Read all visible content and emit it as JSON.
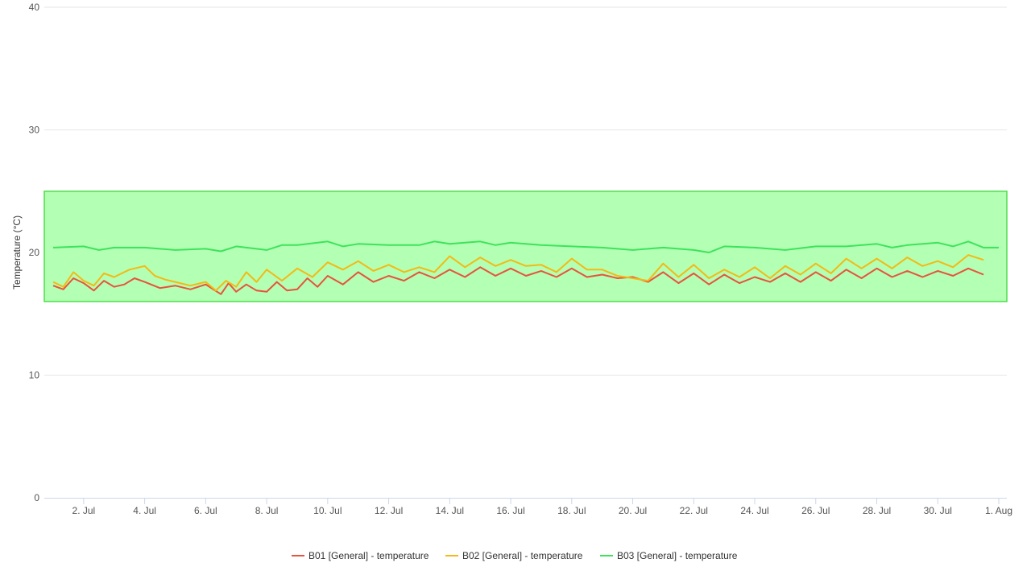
{
  "chart_data": {
    "type": "line",
    "title": "",
    "ylabel": "Temperature (°C)",
    "xlabel": "",
    "ylim": [
      0,
      40
    ],
    "y_ticks": [
      0,
      10,
      20,
      30,
      40
    ],
    "x_range": [
      "2023-07-01",
      "2023-08-01"
    ],
    "x_ticks": [
      {
        "date": "2023-07-02",
        "label": "2. Jul"
      },
      {
        "date": "2023-07-04",
        "label": "4. Jul"
      },
      {
        "date": "2023-07-06",
        "label": "6. Jul"
      },
      {
        "date": "2023-07-08",
        "label": "8. Jul"
      },
      {
        "date": "2023-07-10",
        "label": "10. Jul"
      },
      {
        "date": "2023-07-12",
        "label": "12. Jul"
      },
      {
        "date": "2023-07-14",
        "label": "14. Jul"
      },
      {
        "date": "2023-07-16",
        "label": "16. Jul"
      },
      {
        "date": "2023-07-18",
        "label": "18. Jul"
      },
      {
        "date": "2023-07-20",
        "label": "20. Jul"
      },
      {
        "date": "2023-07-22",
        "label": "22. Jul"
      },
      {
        "date": "2023-07-24",
        "label": "24. Jul"
      },
      {
        "date": "2023-07-26",
        "label": "26. Jul"
      },
      {
        "date": "2023-07-28",
        "label": "28. Jul"
      },
      {
        "date": "2023-07-30",
        "label": "30. Jul"
      },
      {
        "date": "2023-08-01",
        "label": "1. Aug"
      }
    ],
    "band": {
      "from": 16,
      "to": 25,
      "fill": "#b3ffb3",
      "stroke": "#4ddd4d"
    },
    "grid": true,
    "legend_position": "bottom-center",
    "series": [
      {
        "name": "B01 [General] - temperature",
        "color": "#e8533c",
        "points": [
          [
            "2023-07-01",
            17.3
          ],
          [
            "2023-07-01",
            17.0
          ],
          [
            "2023-07-01",
            17.9
          ],
          [
            "2023-07-02",
            17.5
          ],
          [
            "2023-07-02",
            16.9
          ],
          [
            "2023-07-02",
            17.7
          ],
          [
            "2023-07-03",
            17.2
          ],
          [
            "2023-07-03",
            17.4
          ],
          [
            "2023-07-03",
            17.9
          ],
          [
            "2023-07-04",
            17.6
          ],
          [
            "2023-07-04",
            17.1
          ],
          [
            "2023-07-05",
            17.3
          ],
          [
            "2023-07-05",
            17.0
          ],
          [
            "2023-07-06",
            17.4
          ],
          [
            "2023-07-06",
            17.0
          ],
          [
            "2023-07-06",
            16.6
          ],
          [
            "2023-07-06",
            17.5
          ],
          [
            "2023-07-07",
            16.8
          ],
          [
            "2023-07-07",
            17.4
          ],
          [
            "2023-07-07",
            16.9
          ],
          [
            "2023-07-08",
            16.8
          ],
          [
            "2023-07-08",
            17.6
          ],
          [
            "2023-07-08",
            16.9
          ],
          [
            "2023-07-09",
            17.0
          ],
          [
            "2023-07-09",
            17.9
          ],
          [
            "2023-07-09",
            17.2
          ],
          [
            "2023-07-10",
            18.1
          ],
          [
            "2023-07-10",
            17.4
          ],
          [
            "2023-07-11",
            18.4
          ],
          [
            "2023-07-11",
            17.6
          ],
          [
            "2023-07-12",
            18.1
          ],
          [
            "2023-07-12",
            17.7
          ],
          [
            "2023-07-13",
            18.4
          ],
          [
            "2023-07-13",
            17.9
          ],
          [
            "2023-07-14",
            18.6
          ],
          [
            "2023-07-14",
            18.0
          ],
          [
            "2023-07-15",
            18.8
          ],
          [
            "2023-07-15",
            18.1
          ],
          [
            "2023-07-16",
            18.7
          ],
          [
            "2023-07-16",
            18.1
          ],
          [
            "2023-07-17",
            18.5
          ],
          [
            "2023-07-17",
            18.0
          ],
          [
            "2023-07-18",
            18.7
          ],
          [
            "2023-07-18",
            18.0
          ],
          [
            "2023-07-19",
            18.2
          ],
          [
            "2023-07-19",
            17.9
          ],
          [
            "2023-07-20",
            18.0
          ],
          [
            "2023-07-20",
            17.6
          ],
          [
            "2023-07-21",
            18.4
          ],
          [
            "2023-07-21",
            17.5
          ],
          [
            "2023-07-22",
            18.3
          ],
          [
            "2023-07-22",
            17.4
          ],
          [
            "2023-07-23",
            18.2
          ],
          [
            "2023-07-23",
            17.5
          ],
          [
            "2023-07-24",
            18.0
          ],
          [
            "2023-07-24",
            17.6
          ],
          [
            "2023-07-25",
            18.3
          ],
          [
            "2023-07-25",
            17.6
          ],
          [
            "2023-07-26",
            18.4
          ],
          [
            "2023-07-26",
            17.7
          ],
          [
            "2023-07-27",
            18.6
          ],
          [
            "2023-07-27",
            17.9
          ],
          [
            "2023-07-28",
            18.7
          ],
          [
            "2023-07-28",
            18.0
          ],
          [
            "2023-07-29",
            18.5
          ],
          [
            "2023-07-29",
            18.0
          ],
          [
            "2023-07-30",
            18.5
          ],
          [
            "2023-07-30",
            18.1
          ],
          [
            "2023-07-31",
            18.7
          ],
          [
            "2023-07-31",
            18.2
          ]
        ]
      },
      {
        "name": "B02 [General] - temperature",
        "color": "#f5b914",
        "points": [
          [
            "2023-07-01",
            17.6
          ],
          [
            "2023-07-01",
            17.2
          ],
          [
            "2023-07-01",
            18.4
          ],
          [
            "2023-07-02",
            17.7
          ],
          [
            "2023-07-02",
            17.3
          ],
          [
            "2023-07-02",
            18.3
          ],
          [
            "2023-07-03",
            18.0
          ],
          [
            "2023-07-03",
            18.6
          ],
          [
            "2023-07-04",
            18.9
          ],
          [
            "2023-07-04",
            18.1
          ],
          [
            "2023-07-04",
            17.8
          ],
          [
            "2023-07-05",
            17.6
          ],
          [
            "2023-07-05",
            17.3
          ],
          [
            "2023-07-06",
            17.6
          ],
          [
            "2023-07-06",
            16.9
          ],
          [
            "2023-07-06",
            17.7
          ],
          [
            "2023-07-07",
            17.2
          ],
          [
            "2023-07-07",
            18.4
          ],
          [
            "2023-07-07",
            17.6
          ],
          [
            "2023-07-08",
            18.6
          ],
          [
            "2023-07-08",
            17.7
          ],
          [
            "2023-07-09",
            18.7
          ],
          [
            "2023-07-09",
            18.0
          ],
          [
            "2023-07-10",
            19.2
          ],
          [
            "2023-07-10",
            18.6
          ],
          [
            "2023-07-11",
            19.3
          ],
          [
            "2023-07-11",
            18.5
          ],
          [
            "2023-07-12",
            19.0
          ],
          [
            "2023-07-12",
            18.4
          ],
          [
            "2023-07-13",
            18.8
          ],
          [
            "2023-07-13",
            18.4
          ],
          [
            "2023-07-14",
            19.7
          ],
          [
            "2023-07-14",
            18.8
          ],
          [
            "2023-07-15",
            19.6
          ],
          [
            "2023-07-15",
            18.9
          ],
          [
            "2023-07-16",
            19.4
          ],
          [
            "2023-07-16",
            18.9
          ],
          [
            "2023-07-17",
            19.0
          ],
          [
            "2023-07-17",
            18.4
          ],
          [
            "2023-07-18",
            19.5
          ],
          [
            "2023-07-18",
            18.6
          ],
          [
            "2023-07-19",
            18.6
          ],
          [
            "2023-07-19",
            18.1
          ],
          [
            "2023-07-20",
            17.9
          ],
          [
            "2023-07-20",
            17.7
          ],
          [
            "2023-07-21",
            19.1
          ],
          [
            "2023-07-21",
            18.0
          ],
          [
            "2023-07-22",
            19.0
          ],
          [
            "2023-07-22",
            17.9
          ],
          [
            "2023-07-23",
            18.6
          ],
          [
            "2023-07-23",
            18.0
          ],
          [
            "2023-07-24",
            18.8
          ],
          [
            "2023-07-24",
            17.9
          ],
          [
            "2023-07-25",
            18.9
          ],
          [
            "2023-07-25",
            18.2
          ],
          [
            "2023-07-26",
            19.1
          ],
          [
            "2023-07-26",
            18.3
          ],
          [
            "2023-07-27",
            19.5
          ],
          [
            "2023-07-27",
            18.7
          ],
          [
            "2023-07-28",
            19.5
          ],
          [
            "2023-07-28",
            18.7
          ],
          [
            "2023-07-29",
            19.6
          ],
          [
            "2023-07-29",
            18.9
          ],
          [
            "2023-07-30",
            19.3
          ],
          [
            "2023-07-30",
            18.8
          ],
          [
            "2023-07-31",
            19.8
          ],
          [
            "2023-07-31",
            19.4
          ]
        ]
      },
      {
        "name": "B03 [General] - temperature",
        "color": "#3ee35c",
        "points": [
          [
            "2023-07-01",
            20.4
          ],
          [
            "2023-07-02",
            20.5
          ],
          [
            "2023-07-02",
            20.2
          ],
          [
            "2023-07-03",
            20.4
          ],
          [
            "2023-07-04",
            20.4
          ],
          [
            "2023-07-05",
            20.2
          ],
          [
            "2023-07-06",
            20.3
          ],
          [
            "2023-07-06",
            20.1
          ],
          [
            "2023-07-07",
            20.5
          ],
          [
            "2023-07-08",
            20.2
          ],
          [
            "2023-07-08",
            20.6
          ],
          [
            "2023-07-09",
            20.6
          ],
          [
            "2023-07-10",
            20.9
          ],
          [
            "2023-07-10",
            20.5
          ],
          [
            "2023-07-11",
            20.7
          ],
          [
            "2023-07-12",
            20.6
          ],
          [
            "2023-07-13",
            20.6
          ],
          [
            "2023-07-13",
            20.9
          ],
          [
            "2023-07-14",
            20.7
          ],
          [
            "2023-07-15",
            20.9
          ],
          [
            "2023-07-15",
            20.6
          ],
          [
            "2023-07-16",
            20.8
          ],
          [
            "2023-07-17",
            20.6
          ],
          [
            "2023-07-18",
            20.5
          ],
          [
            "2023-07-19",
            20.4
          ],
          [
            "2023-07-20",
            20.2
          ],
          [
            "2023-07-21",
            20.4
          ],
          [
            "2023-07-22",
            20.2
          ],
          [
            "2023-07-22",
            20.0
          ],
          [
            "2023-07-23",
            20.5
          ],
          [
            "2023-07-24",
            20.4
          ],
          [
            "2023-07-25",
            20.2
          ],
          [
            "2023-07-26",
            20.5
          ],
          [
            "2023-07-27",
            20.5
          ],
          [
            "2023-07-28",
            20.7
          ],
          [
            "2023-07-28",
            20.4
          ],
          [
            "2023-07-29",
            20.6
          ],
          [
            "2023-07-30",
            20.8
          ],
          [
            "2023-07-30",
            20.5
          ],
          [
            "2023-07-31",
            20.9
          ],
          [
            "2023-07-31",
            20.4
          ],
          [
            "2023-08-01",
            20.4
          ]
        ]
      }
    ]
  }
}
